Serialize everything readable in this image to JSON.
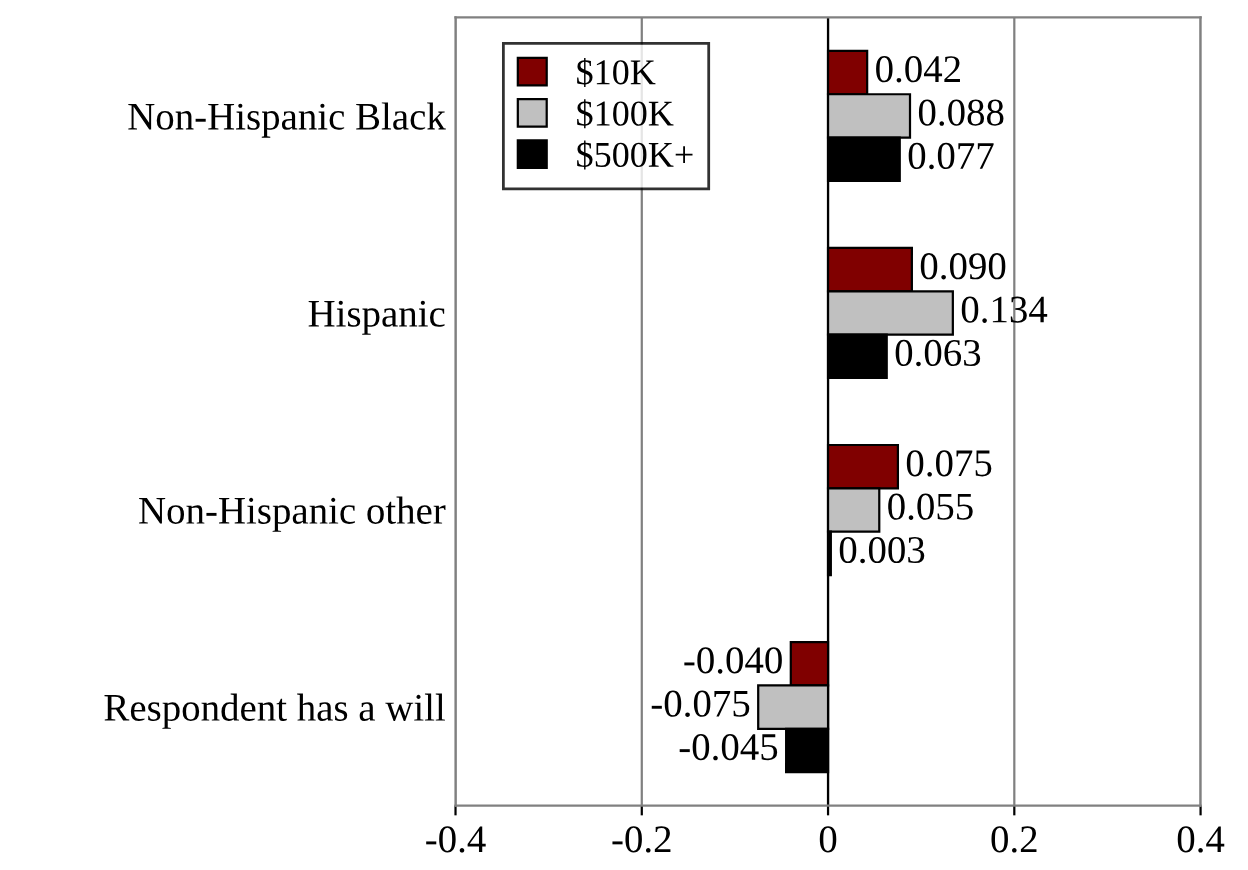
{
  "chart_data": {
    "type": "bar",
    "orientation": "horizontal",
    "categories": [
      "Non-Hispanic Black",
      "Hispanic",
      "Non-Hispanic other",
      "Respondent has a will"
    ],
    "series": [
      {
        "name": "$10K",
        "color": "#800000",
        "values": [
          0.042,
          0.09,
          0.075,
          -0.04
        ],
        "value_labels": [
          "0.042",
          "0.090",
          "0.075",
          "-0.040"
        ]
      },
      {
        "name": "$100K",
        "color": "#c0c0c0",
        "values": [
          0.088,
          0.134,
          0.055,
          -0.075
        ],
        "value_labels": [
          "0.088",
          "0.134",
          "0.055",
          "-0.075"
        ]
      },
      {
        "name": "$500K+",
        "color": "#000000",
        "values": [
          0.077,
          0.063,
          0.003,
          -0.045
        ],
        "value_labels": [
          "0.077",
          "0.063",
          "0.003",
          "-0.045"
        ]
      }
    ],
    "xlim": [
      -0.4,
      0.4
    ],
    "xticks": [
      -0.4,
      -0.2,
      {
        "value": 0,
        "label": "0"
      },
      0.2,
      0.4
    ],
    "grid": "x",
    "legend": "top left"
  }
}
